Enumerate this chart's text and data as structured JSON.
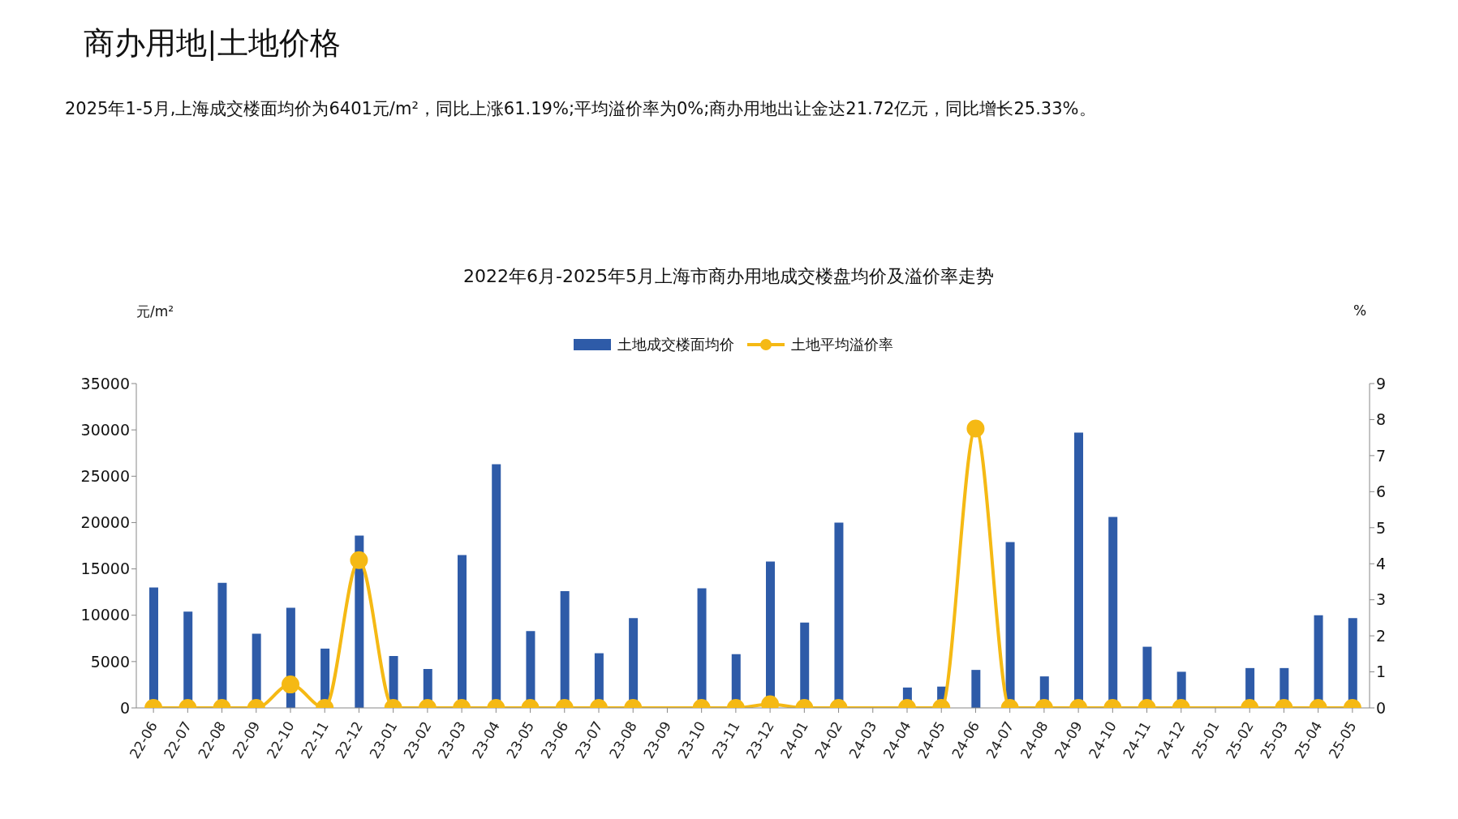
{
  "chart_data": {
    "type": "bar",
    "title": "2022年6月-2025年5月上海市商办用地成交楼盘均价及溢价率走势",
    "annotations": [
      "商办用地|土地价格",
      "2025年1-5月,上海成交楼面均价为6401元/m²，同比上涨61.19%;平均溢价率为0%;商办用地出让金达21.72亿元，同比增长25.33%。"
    ],
    "ylabel": "元/m²",
    "y2label": "%",
    "categories": [
      "22-06",
      "22-07",
      "22-08",
      "22-09",
      "22-10",
      "22-11",
      "22-12",
      "23-01",
      "23-02",
      "23-03",
      "23-04",
      "23-05",
      "23-06",
      "23-07",
      "23-08",
      "23-09",
      "23-10",
      "23-11",
      "23-12",
      "24-01",
      "24-02",
      "24-03",
      "24-04",
      "24-05",
      "24-06",
      "24-07",
      "24-08",
      "24-09",
      "24-10",
      "24-11",
      "24-12",
      "25-01",
      "25-02",
      "25-03",
      "25-04",
      "25-05"
    ],
    "series": [
      {
        "name": "土地成交楼面均价",
        "color": "#2e5ba8",
        "values": [
          13000,
          10400,
          13500,
          8000,
          10800,
          6400,
          18600,
          5600,
          4200,
          16500,
          26300,
          8300,
          12600,
          5900,
          9700,
          null,
          12900,
          5800,
          15800,
          9200,
          20000,
          null,
          2200,
          2300,
          4100,
          17900,
          3400,
          29700,
          20600,
          6600,
          3900,
          null,
          4300,
          4300,
          10000,
          9700
        ]
      },
      {
        "name": "土地平均溢价率",
        "type": "line",
        "axis": "y2",
        "color": "#f5b914",
        "marker": "circle",
        "line_style": "solid",
        "values": [
          0,
          0,
          0,
          0,
          0.65,
          0,
          4.1,
          0,
          0,
          0,
          0,
          0,
          0,
          0,
          0,
          null,
          0,
          0,
          0.1,
          0,
          0,
          null,
          0,
          0,
          7.75,
          0,
          0,
          0,
          0,
          0,
          0,
          null,
          0,
          0,
          0,
          0
        ]
      }
    ],
    "ylim": [
      0,
      35000
    ],
    "yticks": [
      0,
      5000,
      10000,
      15000,
      20000,
      25000,
      30000,
      35000
    ],
    "y2lim": [
      0,
      9
    ],
    "y2ticks": [
      0,
      1,
      2,
      3,
      4,
      5,
      6,
      7,
      8,
      9
    ],
    "grid": false,
    "legend": "top"
  }
}
